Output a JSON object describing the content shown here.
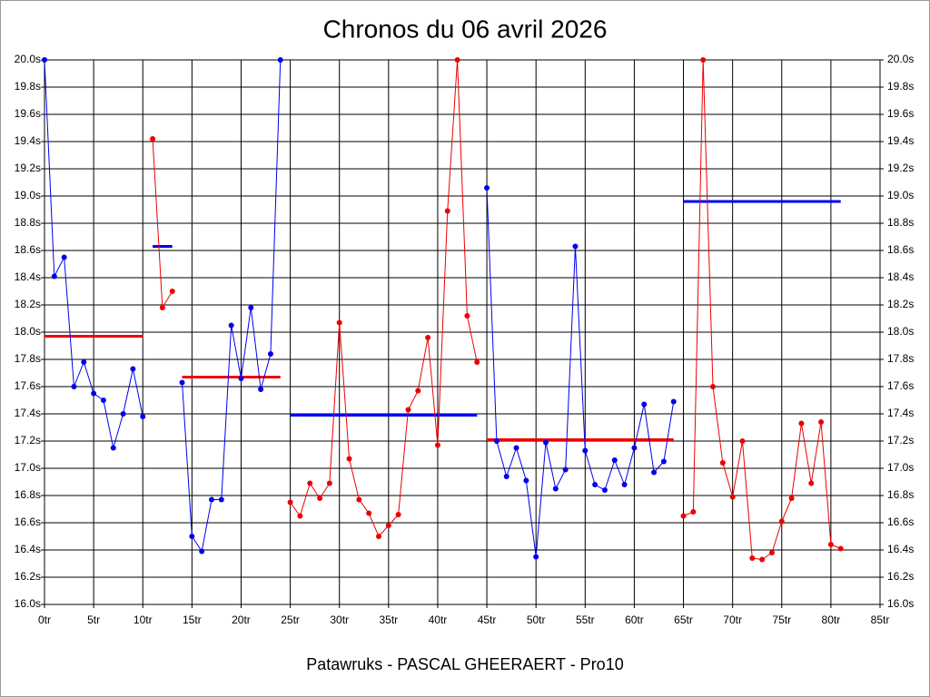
{
  "chart_data": {
    "type": "line",
    "title": "Chronos du 06 avril 2026",
    "caption": "Patawruks - PASCAL GHEERAERT - Pro10",
    "x": [
      0,
      1,
      2,
      3,
      4,
      5,
      6,
      7,
      8,
      9,
      10,
      11,
      12,
      13,
      14,
      15,
      16,
      17,
      18,
      19,
      20,
      21,
      22,
      23,
      24,
      25,
      26,
      27,
      28,
      29,
      30,
      31,
      32,
      33,
      34,
      35,
      36,
      37,
      38,
      39,
      40,
      41,
      42,
      43,
      44,
      45,
      46,
      47,
      48,
      49,
      50,
      51,
      52,
      53,
      54,
      55,
      56,
      57,
      58,
      59,
      60,
      61,
      62,
      63,
      64,
      65,
      66,
      67,
      68,
      69,
      70,
      71,
      72,
      73,
      74,
      75,
      76,
      77,
      78,
      79,
      80,
      81
    ],
    "series": [
      {
        "color": "#0000ee",
        "values": [
          20.0,
          18.41,
          18.55,
          17.6,
          17.78,
          17.55,
          17.5,
          17.15,
          17.4,
          17.73,
          17.38,
          null,
          null,
          null,
          17.63,
          16.5,
          16.39,
          16.77,
          16.77,
          18.05,
          17.66,
          18.18,
          17.58,
          17.84,
          20.0,
          null,
          null,
          null,
          null,
          null,
          null,
          null,
          null,
          null,
          null,
          null,
          null,
          null,
          null,
          null,
          null,
          null,
          null,
          null,
          null,
          19.06,
          17.2,
          16.94,
          17.15,
          16.91,
          16.35,
          17.19,
          16.85,
          16.99,
          18.63,
          17.13,
          16.88,
          16.84,
          17.06,
          16.88,
          17.15,
          17.47,
          16.97,
          17.05,
          17.49,
          null,
          null,
          null,
          null,
          null,
          null,
          null,
          null,
          null,
          null,
          null,
          null,
          null,
          null,
          null,
          null,
          null
        ]
      },
      {
        "color": "#ee0000",
        "values": [
          null,
          null,
          null,
          null,
          null,
          null,
          null,
          null,
          null,
          null,
          null,
          19.42,
          18.18,
          18.3,
          null,
          null,
          null,
          null,
          null,
          null,
          null,
          null,
          null,
          null,
          null,
          16.75,
          16.65,
          16.89,
          16.78,
          16.89,
          18.07,
          17.07,
          16.77,
          16.67,
          16.5,
          16.58,
          16.66,
          17.43,
          17.57,
          17.96,
          17.17,
          18.89,
          20.0,
          18.12,
          17.78,
          null,
          null,
          null,
          null,
          null,
          null,
          null,
          null,
          null,
          null,
          null,
          null,
          null,
          null,
          null,
          null,
          null,
          null,
          null,
          null,
          16.65,
          16.68,
          20.0,
          17.6,
          17.04,
          16.79,
          17.2,
          16.34,
          16.33,
          16.38,
          16.61,
          16.78,
          17.33,
          16.89,
          17.34,
          16.44,
          16.41
        ]
      }
    ],
    "averages": [
      {
        "from": 0,
        "to": 10,
        "value": 17.97,
        "color": "#ee0000"
      },
      {
        "from": 11,
        "to": 13,
        "value": 18.63,
        "color": "#0000ee"
      },
      {
        "from": 14,
        "to": 24,
        "value": 17.67,
        "color": "#ee0000"
      },
      {
        "from": 25,
        "to": 44,
        "value": 17.39,
        "color": "#0000ee"
      },
      {
        "from": 45,
        "to": 64,
        "value": 17.21,
        "color": "#ee0000"
      },
      {
        "from": 65,
        "to": 81,
        "value": 18.96,
        "color": "#0000ee"
      }
    ],
    "xlim": [
      0,
      85
    ],
    "xticks": [
      {
        "value": 0,
        "label": "0tr"
      },
      {
        "value": 5,
        "label": "5tr"
      },
      {
        "value": 10,
        "label": "10tr"
      },
      {
        "value": 15,
        "label": "15tr"
      },
      {
        "value": 20,
        "label": "20tr"
      },
      {
        "value": 25,
        "label": "25tr"
      },
      {
        "value": 30,
        "label": "30tr"
      },
      {
        "value": 35,
        "label": "35tr"
      },
      {
        "value": 40,
        "label": "40tr"
      },
      {
        "value": 45,
        "label": "45tr"
      },
      {
        "value": 50,
        "label": "50tr"
      },
      {
        "value": 55,
        "label": "55tr"
      },
      {
        "value": 60,
        "label": "60tr"
      },
      {
        "value": 65,
        "label": "65tr"
      },
      {
        "value": 70,
        "label": "70tr"
      },
      {
        "value": 75,
        "label": "75tr"
      },
      {
        "value": 80,
        "label": "80tr"
      },
      {
        "value": 85,
        "label": "85tr"
      }
    ],
    "ylim": [
      16.0,
      20.0
    ],
    "yticks": [
      {
        "value": 16.0,
        "label": "16.0s"
      },
      {
        "value": 16.2,
        "label": "16.2s"
      },
      {
        "value": 16.4,
        "label": "16.4s"
      },
      {
        "value": 16.6,
        "label": "16.6s"
      },
      {
        "value": 16.8,
        "label": "16.8s"
      },
      {
        "value": 17.0,
        "label": "17.0s"
      },
      {
        "value": 17.2,
        "label": "17.2s"
      },
      {
        "value": 17.4,
        "label": "17.4s"
      },
      {
        "value": 17.6,
        "label": "17.6s"
      },
      {
        "value": 17.8,
        "label": "17.8s"
      },
      {
        "value": 18.0,
        "label": "18.0s"
      },
      {
        "value": 18.2,
        "label": "18.2s"
      },
      {
        "value": 18.4,
        "label": "18.4s"
      },
      {
        "value": 18.6,
        "label": "18.6s"
      },
      {
        "value": 18.8,
        "label": "18.8s"
      },
      {
        "value": 19.0,
        "label": "19.0s"
      },
      {
        "value": 19.2,
        "label": "19.2s"
      },
      {
        "value": 19.4,
        "label": "19.4s"
      },
      {
        "value": 19.6,
        "label": "19.6s"
      },
      {
        "value": 19.8,
        "label": "19.8s"
      },
      {
        "value": 20.0,
        "label": "20.0s"
      }
    ],
    "grid": true
  }
}
